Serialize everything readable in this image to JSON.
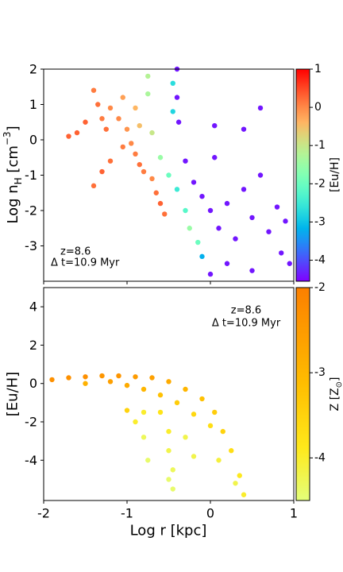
{
  "chart_data": [
    {
      "type": "scatter",
      "ylabel": [
        "Log n",
        "H",
        " [cm",
        "−3",
        "]"
      ],
      "annotation": [
        "z=8.6",
        "Δ t=10.9 Myr"
      ],
      "xlim": [
        -2,
        1
      ],
      "xticks": [
        -2,
        -1,
        0,
        1
      ],
      "ylim": [
        -4,
        2
      ],
      "yticks": [
        -3,
        -2,
        -1,
        0,
        1,
        2
      ],
      "colorbar": {
        "label": "[Eu/H]",
        "colormap": "rainbow",
        "lim": [
          -4.55,
          1
        ],
        "ticks": [
          -4,
          -3,
          -2,
          -1,
          0,
          1
        ]
      },
      "x": [
        -1.4,
        -1.35,
        -1.3,
        -1.25,
        -1.5,
        -1.6,
        -1.7,
        -1.2,
        -1.1,
        -1.0,
        -1.05,
        -0.95,
        -0.9,
        -0.85,
        -0.8,
        -1.2,
        -1.3,
        -1.4,
        -0.7,
        -0.65,
        -0.6,
        -0.55,
        -1.05,
        -0.9,
        -0.85,
        -0.75,
        -0.75,
        -0.7,
        -0.6,
        -0.5,
        -0.45,
        -0.45,
        -0.4,
        -0.3,
        -0.25,
        -0.15,
        -0.1,
        -0.4,
        -0.4,
        -0.38,
        -0.3,
        -0.2,
        -0.1,
        0.0,
        0.05,
        0.05,
        0.1,
        0.2,
        0.3,
        0.4,
        0.4,
        0.5,
        0.6,
        0.6,
        0.7,
        0.8,
        0.85,
        0.9,
        0.95,
        0.2,
        0.0,
        0.5
      ],
      "values": [
        1.4,
        1.0,
        0.6,
        0.3,
        0.5,
        0.2,
        0.1,
        0.9,
        0.6,
        0.3,
        -0.2,
        -0.1,
        -0.4,
        -0.7,
        -0.9,
        -0.6,
        -0.9,
        -1.3,
        -1.1,
        -1.5,
        -1.8,
        -2.1,
        1.2,
        0.9,
        0.4,
        1.8,
        1.3,
        0.2,
        -0.5,
        -1.0,
        1.6,
        0.8,
        -1.4,
        -2.0,
        -2.5,
        -2.9,
        -3.3,
        2.0,
        1.2,
        0.5,
        -0.6,
        -1.2,
        -1.6,
        -2.0,
        0.4,
        -0.5,
        -2.5,
        -1.8,
        -2.8,
        0.3,
        -1.4,
        -2.2,
        0.9,
        -1.0,
        -2.6,
        -1.9,
        -3.2,
        -2.3,
        -3.5,
        -3.5,
        -3.8,
        -3.7
      ],
      "color_values": [
        0.1,
        0.2,
        0.1,
        0.2,
        0.3,
        0.3,
        0.3,
        0.0,
        0,
        -0.1,
        0.1,
        0,
        0.1,
        0.2,
        0.1,
        0.2,
        0.3,
        0.2,
        0,
        0.2,
        0.3,
        0.2,
        -0.2,
        -0.4,
        -0.5,
        -1.2,
        -1.3,
        -1.0,
        -1.5,
        -2.0,
        -2.7,
        -2.8,
        -2.5,
        -2.2,
        -1.5,
        -2.0,
        -3.2,
        -4.4,
        -4.4,
        -4.4,
        -4.4,
        -4.4,
        -4.4,
        -4.4,
        -4.4,
        -4.4,
        -4.4,
        -4.4,
        -4.4,
        -4.4,
        -4.4,
        -4.4,
        -4.4,
        -4.4,
        -4.4,
        -4.4,
        -4.4,
        -4.4,
        -4.4,
        -4.4,
        -4.4,
        -4.4
      ]
    },
    {
      "type": "scatter",
      "ylabel": "[Eu/H]",
      "xlabel": "Log r [kpc]",
      "annotation": [
        "z=8.6",
        "Δ t=10.9 Myr"
      ],
      "xlim": [
        -2,
        1
      ],
      "xticks": [
        -2,
        -1,
        0,
        1
      ],
      "ylim": [
        -6.1,
        5
      ],
      "yticks": [
        -4,
        -2,
        0,
        2,
        4
      ],
      "colorbar": {
        "label": [
          "Z [Z",
          "⊙",
          "]"
        ],
        "colormap": "wistia",
        "lim": [
          -4.5,
          -2
        ],
        "ticks": [
          -4,
          -3,
          -2
        ]
      },
      "x": [
        -1.9,
        -1.7,
        -1.5,
        -1.3,
        -1.1,
        -0.9,
        -0.7,
        -0.5,
        -0.3,
        -0.1,
        0.05,
        0.15,
        0.25,
        0.35,
        0.4,
        -1.2,
        -1.0,
        -0.8,
        -0.6,
        -0.4,
        -0.2,
        0.0,
        -0.6,
        -0.5,
        -0.5,
        -0.45,
        -0.45,
        -0.8,
        -0.8,
        -0.75,
        -0.5,
        -0.3,
        0.1,
        -1.5,
        -1.0,
        -0.2,
        0.3,
        -0.9
      ],
      "values": [
        0.2,
        0.3,
        0.35,
        0.4,
        0.4,
        0.35,
        0.3,
        0.1,
        -0.3,
        -0.8,
        -1.5,
        -2.5,
        -3.5,
        -4.8,
        -5.8,
        0.1,
        -0.1,
        -0.3,
        -0.6,
        -1.0,
        -1.6,
        -2.2,
        -1.5,
        -2.5,
        -3.5,
        -4.5,
        -5.5,
        -1.5,
        -2.8,
        -4.0,
        -5.0,
        -2.8,
        -4.0,
        0.0,
        -1.4,
        -3.8,
        -5.2,
        -2.0
      ],
      "color_values": [
        -2.3,
        -2.3,
        -2.3,
        -2.4,
        -2.4,
        -2.5,
        -2.6,
        -2.8,
        -3.0,
        -3.2,
        -3.4,
        -3.5,
        -3.7,
        -3.9,
        -4.0,
        -2.6,
        -2.8,
        -3.0,
        -3.2,
        -3.4,
        -3.6,
        -3.7,
        -3.8,
        -4.0,
        -4.2,
        -4.3,
        -4.4,
        -4.0,
        -4.3,
        -4.4,
        -4.4,
        -4.2,
        -4.1,
        -2.9,
        -3.5,
        -4.2,
        -4.2,
        -4.0
      ]
    }
  ]
}
